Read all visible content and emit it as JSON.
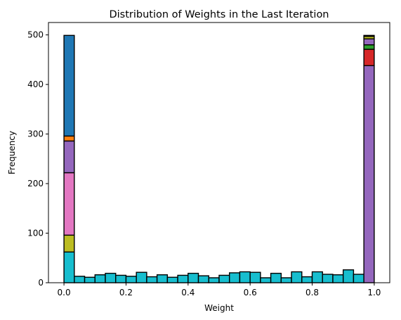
{
  "chart_data": {
    "type": "bar",
    "subtype": "stacked-histogram",
    "title": "Distribution of Weights in the Last Iteration",
    "xlabel": "Weight",
    "ylabel": "Frequency",
    "xlim": [
      -0.05,
      1.05
    ],
    "ylim": [
      0,
      525
    ],
    "xticks": [
      0.0,
      0.2,
      0.4,
      0.6,
      0.8,
      1.0
    ],
    "xtick_labels": [
      "0.0",
      "0.2",
      "0.4",
      "0.6",
      "0.8",
      "1.0"
    ],
    "yticks": [
      0,
      100,
      200,
      300,
      400,
      500
    ],
    "ytick_labels": [
      "0",
      "100",
      "200",
      "300",
      "400",
      "500"
    ],
    "grid": false,
    "legend": "none",
    "bins": {
      "start": 0.0,
      "width": 0.03333,
      "count": 30
    },
    "stacked_bins": [
      {
        "bin": 0,
        "segments": [
          {
            "color": "#17becf",
            "value": 62
          },
          {
            "color": "#bcbd22",
            "value": 34
          },
          {
            "color": "#e377c2",
            "value": 126
          },
          {
            "color": "#9467bd",
            "value": 64
          },
          {
            "color": "#ff7f0e",
            "value": 10
          },
          {
            "color": "#1f77b4",
            "value": 203
          }
        ]
      },
      {
        "bin": 29,
        "segments": [
          {
            "color": "#9467bd",
            "value": 438
          },
          {
            "color": "#d62728",
            "value": 33
          },
          {
            "color": "#2ca02c",
            "value": 9
          },
          {
            "color": "#9467bd",
            "value": 12
          },
          {
            "color": "#bcbd22",
            "value": 5
          },
          {
            "color": "#ff7f0e",
            "value": 2
          }
        ]
      }
    ],
    "series": [
      {
        "color": "#17becf",
        "values": [
          62,
          13,
          11,
          16,
          19,
          15,
          13,
          21,
          12,
          16,
          11,
          15,
          19,
          14,
          10,
          15,
          20,
          22,
          21,
          10,
          19,
          10,
          22,
          12,
          22,
          17,
          16,
          26,
          17,
          0
        ]
      }
    ],
    "colors": {
      "edge": "#000000",
      "cyan": "#17becf",
      "olive": "#bcbd22",
      "pink": "#e377c2",
      "purple": "#9467bd",
      "orange": "#ff7f0e",
      "blue": "#1f77b4",
      "red": "#d62728",
      "green": "#2ca02c"
    }
  }
}
